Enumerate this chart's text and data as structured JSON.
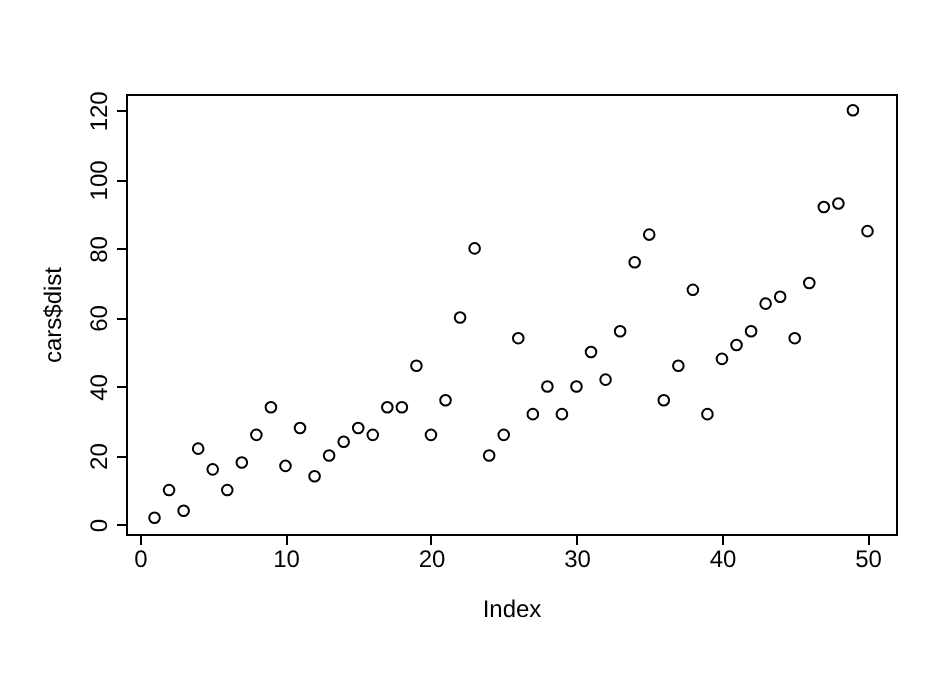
{
  "chart_data": {
    "type": "scatter",
    "xlabel": "Index",
    "ylabel": "cars$dist",
    "x": [
      1,
      2,
      3,
      4,
      5,
      6,
      7,
      8,
      9,
      10,
      11,
      12,
      13,
      14,
      15,
      16,
      17,
      18,
      19,
      20,
      21,
      22,
      23,
      24,
      25,
      26,
      27,
      28,
      29,
      30,
      31,
      32,
      33,
      34,
      35,
      36,
      37,
      38,
      39,
      40,
      41,
      42,
      43,
      44,
      45,
      46,
      47,
      48,
      49,
      50
    ],
    "series": [
      {
        "color": "#000000",
        "values": [
          2,
          10,
          4,
          22,
          16,
          10,
          18,
          26,
          34,
          17,
          28,
          14,
          20,
          24,
          28,
          26,
          34,
          34,
          46,
          26,
          36,
          60,
          80,
          20,
          26,
          54,
          32,
          40,
          32,
          40,
          50,
          42,
          56,
          76,
          84,
          36,
          46,
          68,
          32,
          48,
          52,
          56,
          64,
          66,
          54,
          70,
          92,
          93,
          120,
          85
        ]
      }
    ],
    "xlim": [
      -0.96,
      51.96
    ],
    "ylim": [
      -2.72,
      124.72
    ],
    "xticks": [
      0,
      10,
      20,
      30,
      40,
      50
    ],
    "yticks": [
      0,
      20,
      40,
      60,
      80,
      100,
      120
    ],
    "marker": "circle",
    "grid": false,
    "legend": false
  }
}
